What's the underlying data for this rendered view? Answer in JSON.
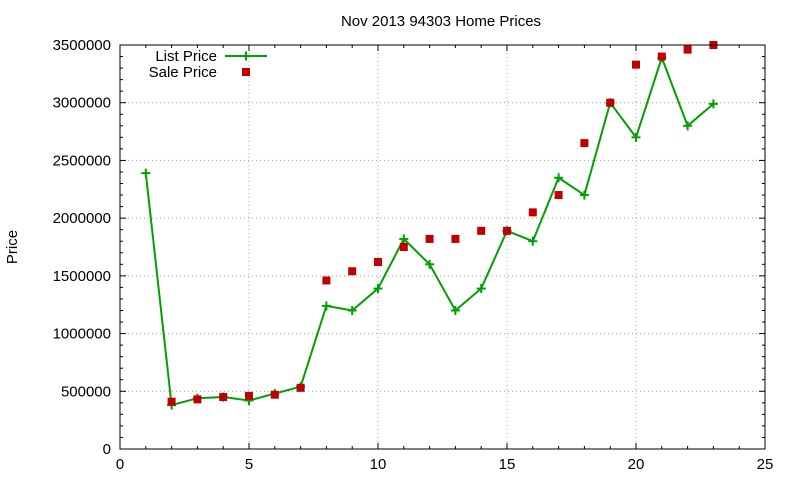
{
  "chart_data": {
    "type": "line",
    "title": "Nov 2013 94303 Home Prices",
    "xlabel": "",
    "ylabel": "Price",
    "xlim": [
      0,
      25
    ],
    "ylim": [
      0,
      3500000
    ],
    "xticks": [
      0,
      5,
      10,
      15,
      20,
      25
    ],
    "yticks": [
      0,
      500000,
      1000000,
      1500000,
      2000000,
      2500000,
      3000000,
      3500000
    ],
    "grid": true,
    "legend": "top-left",
    "series": [
      {
        "name": "List Price",
        "style": "lines+crosses",
        "color": "#00a000",
        "x": [
          1,
          2,
          3,
          4,
          5,
          6,
          7,
          8,
          9,
          10,
          11,
          12,
          13,
          14,
          15,
          16,
          17,
          18,
          19,
          20,
          21,
          22,
          23
        ],
        "y": [
          2390000,
          380000,
          440000,
          450000,
          420000,
          480000,
          540000,
          1240000,
          1200000,
          1390000,
          1820000,
          1600000,
          1200000,
          1390000,
          1890000,
          1800000,
          2350000,
          2200000,
          3000000,
          2700000,
          3390000,
          2800000,
          2990000
        ]
      },
      {
        "name": "Sale Price",
        "style": "squares",
        "color": "#c00000",
        "x": [
          2,
          3,
          4,
          5,
          6,
          7,
          8,
          9,
          10,
          11,
          12,
          13,
          14,
          15,
          16,
          17,
          18,
          19,
          20,
          21,
          22,
          23
        ],
        "y": [
          410000,
          430000,
          450000,
          460000,
          470000,
          530000,
          1460000,
          1540000,
          1620000,
          1750000,
          1820000,
          1820000,
          1890000,
          1890000,
          2050000,
          2200000,
          2650000,
          3000000,
          3330000,
          3400000,
          3460000,
          3500000
        ]
      }
    ]
  }
}
